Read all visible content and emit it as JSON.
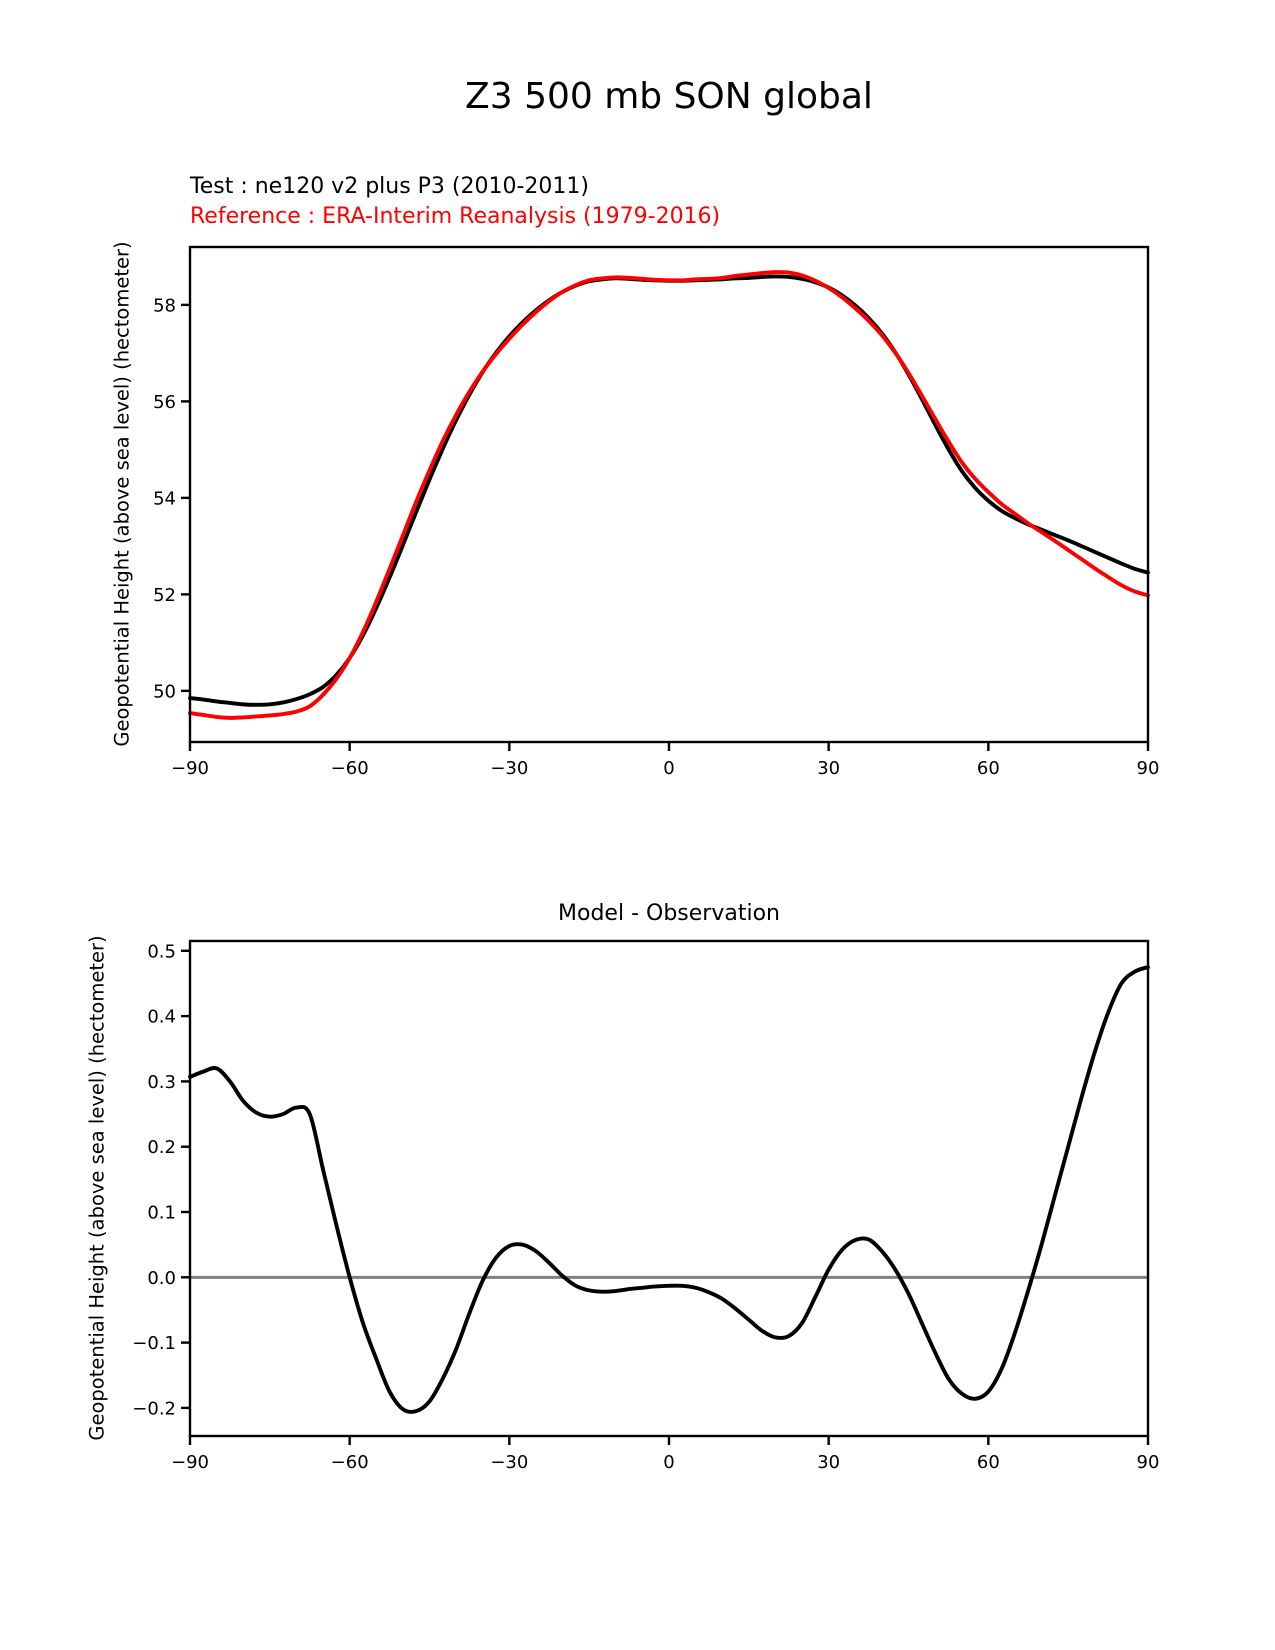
{
  "figure": {
    "title": "Z3 500 mb SON global",
    "test_label": "Test : ne120 v2 plus P3 (2010-2011)",
    "reference_label": "Reference : ERA-Interim Reanalysis (1979-2016)",
    "colors": {
      "test": "#000000",
      "reference": "#ff0000",
      "zero_line": "#808080",
      "text": "#000000"
    }
  },
  "chart_data": [
    {
      "type": "line",
      "title": "Z3 500 mb SON global",
      "xlabel": "",
      "ylabel": "Geopotential Height (above sea level) (hectometer)",
      "xlim": [
        -90,
        90
      ],
      "ylim": [
        48.94,
        59.2
      ],
      "grid": false,
      "legend_position": "none",
      "xticks": [
        -90,
        -60,
        -30,
        0,
        30,
        60,
        90
      ],
      "xtick_labels": [
        "−90",
        "−60",
        "−30",
        "0",
        "30",
        "60",
        "90"
      ],
      "yticks": [
        50,
        52,
        54,
        56,
        58
      ],
      "ytick_labels": [
        "50",
        "52",
        "54",
        "56",
        "58"
      ],
      "x": [
        -90,
        -87.5,
        -85,
        -82.5,
        -80,
        -77.5,
        -75,
        -72.5,
        -70,
        -67.5,
        -65,
        -62.5,
        -60,
        -57.5,
        -55,
        -52.5,
        -50,
        -47.5,
        -45,
        -42.5,
        -40,
        -37.5,
        -35,
        -32.5,
        -30,
        -27.5,
        -25,
        -22.5,
        -20,
        -17.5,
        -15,
        -12.5,
        -10,
        -7.5,
        -5,
        -2.5,
        0,
        2.5,
        5,
        7.5,
        10,
        12.5,
        15,
        17.5,
        20,
        22.5,
        25,
        27.5,
        30,
        32.5,
        35,
        37.5,
        40,
        42.5,
        45,
        47.5,
        50,
        52.5,
        55,
        57.5,
        60,
        62.5,
        65,
        67.5,
        70,
        72.5,
        75,
        77.5,
        80,
        82.5,
        85,
        87.5,
        90
      ],
      "series": [
        {
          "id": "test",
          "name": "Test : ne120 v2 plus P3 (2010-2011)",
          "color": "#000000",
          "values": [
            49.85,
            49.82,
            49.78,
            49.75,
            49.72,
            49.71,
            49.72,
            49.76,
            49.83,
            49.93,
            50.08,
            50.33,
            50.68,
            51.15,
            51.72,
            52.35,
            53.02,
            53.71,
            54.38,
            55.02,
            55.61,
            56.14,
            56.61,
            57.01,
            57.35,
            57.64,
            57.89,
            58.1,
            58.27,
            58.4,
            58.49,
            58.53,
            58.55,
            58.54,
            58.52,
            58.51,
            58.5,
            58.5,
            58.51,
            58.52,
            58.53,
            58.55,
            58.56,
            58.58,
            58.59,
            58.58,
            58.54,
            58.47,
            58.36,
            58.2,
            57.99,
            57.73,
            57.41,
            57.02,
            56.56,
            56.05,
            55.52,
            55.01,
            54.56,
            54.21,
            53.94,
            53.73,
            53.58,
            53.45,
            53.34,
            53.23,
            53.12,
            53.0,
            52.88,
            52.76,
            52.64,
            52.53,
            52.45
          ]
        },
        {
          "id": "reference",
          "name": "Reference : ERA-Interim Reanalysis (1979-2016)",
          "color": "#ff0000",
          "values": [
            49.54,
            49.5,
            49.46,
            49.44,
            49.45,
            49.47,
            49.49,
            49.52,
            49.57,
            49.68,
            49.92,
            50.25,
            50.68,
            51.22,
            51.85,
            52.53,
            53.22,
            53.92,
            54.57,
            55.18,
            55.72,
            56.2,
            56.62,
            56.98,
            57.3,
            57.59,
            57.85,
            58.08,
            58.27,
            58.41,
            58.51,
            58.55,
            58.57,
            58.56,
            58.54,
            58.52,
            58.51,
            58.51,
            58.53,
            58.54,
            58.56,
            58.6,
            58.63,
            58.66,
            58.68,
            58.67,
            58.61,
            58.5,
            58.35,
            58.16,
            57.93,
            57.67,
            57.37,
            57.01,
            56.59,
            56.12,
            55.64,
            55.17,
            54.74,
            54.4,
            54.12,
            53.87,
            53.67,
            53.47,
            53.29,
            53.11,
            52.92,
            52.73,
            52.54,
            52.36,
            52.19,
            52.06,
            51.98
          ]
        }
      ]
    },
    {
      "type": "line",
      "title": "Model - Observation",
      "xlabel": "",
      "ylabel": "Geopotential Height (above sea level) (hectometer)",
      "xlim": [
        -90,
        90
      ],
      "ylim": [
        -0.243,
        0.515
      ],
      "grid": false,
      "legend_position": "none",
      "zero_line": true,
      "zero_line_color": "#808080",
      "xticks": [
        -90,
        -60,
        -30,
        0,
        30,
        60,
        90
      ],
      "xtick_labels": [
        "−90",
        "−60",
        "−30",
        "0",
        "30",
        "60",
        "90"
      ],
      "yticks": [
        0.5,
        0.4,
        0.3,
        0.2,
        0.1,
        0.0,
        -0.1,
        -0.2
      ],
      "ytick_labels": [
        "0.5",
        "0.4",
        "0.3",
        "0.2",
        "0.1",
        "0.0",
        "−0.1",
        "−0.2"
      ],
      "x": [
        -90,
        -87.5,
        -85,
        -82.5,
        -80,
        -77.5,
        -75,
        -72.5,
        -70,
        -67.5,
        -65,
        -62.5,
        -60,
        -57.5,
        -55,
        -52.5,
        -50,
        -47.5,
        -45,
        -42.5,
        -40,
        -37.5,
        -35,
        -32.5,
        -30,
        -27.5,
        -25,
        -22.5,
        -20,
        -17.5,
        -15,
        -12.5,
        -10,
        -7.5,
        -5,
        -2.5,
        0,
        2.5,
        5,
        7.5,
        10,
        12.5,
        15,
        17.5,
        20,
        22.5,
        25,
        27.5,
        30,
        32.5,
        35,
        37.5,
        40,
        42.5,
        45,
        47.5,
        50,
        52.5,
        55,
        57.5,
        60,
        62.5,
        65,
        67.5,
        70,
        72.5,
        75,
        77.5,
        80,
        82.5,
        85,
        87.5,
        90
      ],
      "series": [
        {
          "id": "difference",
          "name": "Model - Observation",
          "color": "#000000",
          "values": [
            0.307,
            0.315,
            0.32,
            0.3,
            0.27,
            0.252,
            0.246,
            0.25,
            0.26,
            0.25,
            0.165,
            0.08,
            0.0,
            -0.07,
            -0.125,
            -0.175,
            -0.202,
            -0.205,
            -0.19,
            -0.155,
            -0.11,
            -0.055,
            -0.005,
            0.03,
            0.048,
            0.05,
            0.04,
            0.022,
            0.002,
            -0.013,
            -0.02,
            -0.022,
            -0.021,
            -0.018,
            -0.016,
            -0.014,
            -0.013,
            -0.013,
            -0.016,
            -0.023,
            -0.033,
            -0.048,
            -0.065,
            -0.082,
            -0.092,
            -0.09,
            -0.07,
            -0.03,
            0.012,
            0.042,
            0.057,
            0.058,
            0.04,
            0.012,
            -0.025,
            -0.07,
            -0.115,
            -0.155,
            -0.178,
            -0.186,
            -0.175,
            -0.14,
            -0.085,
            -0.02,
            0.05,
            0.125,
            0.2,
            0.275,
            0.345,
            0.405,
            0.45,
            0.468,
            0.475
          ]
        }
      ]
    }
  ]
}
